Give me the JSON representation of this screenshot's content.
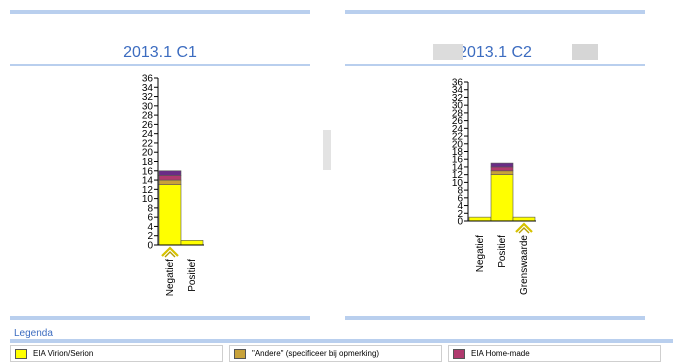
{
  "colors": {
    "virion": "#ffff00",
    "andere": "#c8a23a",
    "homemade": "#b03a6e",
    "purple": "#6a2c86",
    "accent": "#3c6cc0"
  },
  "legend": {
    "title": "Legenda",
    "items": [
      {
        "label": "EIA Virion/Serion",
        "color": "#ffff00"
      },
      {
        "label": "\"Andere\" (specificeer bij opmerking)",
        "color": "#c8a23a"
      },
      {
        "label": "EIA Home-made",
        "color": "#b03a6e"
      }
    ]
  },
  "chart_data": [
    {
      "type": "bar",
      "title": "2013.1 C1",
      "categories": [
        "Negatief",
        "Positief"
      ],
      "yticks": [
        0,
        2,
        4,
        6,
        8,
        10,
        12,
        14,
        16,
        18,
        20,
        22,
        24,
        26,
        28,
        30,
        32,
        34,
        36
      ],
      "ylim": [
        0,
        36
      ],
      "marker_category": "Negatief",
      "series": [
        {
          "color": "#ffff00",
          "values": [
            13,
            1
          ]
        },
        {
          "color": "#c8a23a",
          "values": [
            1,
            0
          ]
        },
        {
          "color": "#b03a6e",
          "values": [
            1,
            0
          ]
        },
        {
          "color": "#6a2c86",
          "values": [
            1,
            0
          ]
        }
      ]
    },
    {
      "type": "bar",
      "title": "2013.1 C2",
      "categories": [
        "Negatief",
        "Positief",
        "Grenswaarde"
      ],
      "yticks": [
        0,
        2,
        4,
        6,
        8,
        10,
        12,
        14,
        16,
        18,
        20,
        22,
        24,
        26,
        28,
        30,
        32,
        34,
        36
      ],
      "ylim": [
        0,
        36
      ],
      "marker_category": "Grenswaarde",
      "series": [
        {
          "color": "#ffff00",
          "values": [
            1,
            12,
            1
          ]
        },
        {
          "color": "#c8a23a",
          "values": [
            0,
            1,
            0
          ]
        },
        {
          "color": "#b03a6e",
          "values": [
            0,
            1,
            0
          ]
        },
        {
          "color": "#6a2c86",
          "values": [
            0,
            1,
            0
          ]
        }
      ]
    }
  ]
}
